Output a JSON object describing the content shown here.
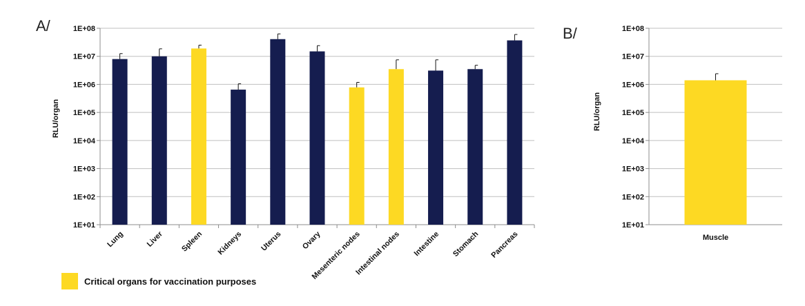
{
  "colors": {
    "navy": "#151d4f",
    "yellow": "#fdd923",
    "grid": "#bfbfbf",
    "axis": "#8c8c8c"
  },
  "legend": {
    "label": "Critical organs for vaccination purposes",
    "color": "#fdd923"
  },
  "chart_data": [
    {
      "panel": "A/",
      "type": "bar",
      "ylabel": "RLU/organ",
      "yscale": "log",
      "ylim": [
        10,
        100000000
      ],
      "yticks": [
        "1E+01",
        "1E+02",
        "1E+03",
        "1E+04",
        "1E+05",
        "1E+06",
        "1E+07",
        "1E+08"
      ],
      "grid": true,
      "categories": [
        "Lung",
        "Liver",
        "Spleen",
        "Kidneys",
        "Uterus",
        "Ovary",
        "Mesenteric nodes",
        "Intestinal nodes",
        "Intestine",
        "Stomach",
        "Pancreas"
      ],
      "values": [
        8000000,
        10000000,
        19000000,
        650000,
        41000000,
        15000000,
        780000,
        3500000,
        3100000,
        3500000,
        37000000
      ],
      "error_upper": [
        12500000,
        18500000,
        25000000,
        1050000,
        63000000,
        24000000,
        1180000,
        7500000,
        7500000,
        4800000,
        60000000
      ],
      "colors": [
        "#151d4f",
        "#151d4f",
        "#fdd923",
        "#151d4f",
        "#151d4f",
        "#151d4f",
        "#fdd923",
        "#fdd923",
        "#151d4f",
        "#151d4f",
        "#151d4f"
      ]
    },
    {
      "panel": "B/",
      "type": "bar",
      "ylabel": "RLU/organ",
      "yscale": "log",
      "ylim": [
        10,
        100000000
      ],
      "yticks": [
        "1E+01",
        "1E+02",
        "1E+03",
        "1E+04",
        "1E+05",
        "1E+06",
        "1E+07",
        "1E+08"
      ],
      "grid": true,
      "categories": [
        "Muscle"
      ],
      "values": [
        1400000
      ],
      "error_upper": [
        2400000
      ],
      "colors": [
        "#fdd923"
      ]
    }
  ]
}
